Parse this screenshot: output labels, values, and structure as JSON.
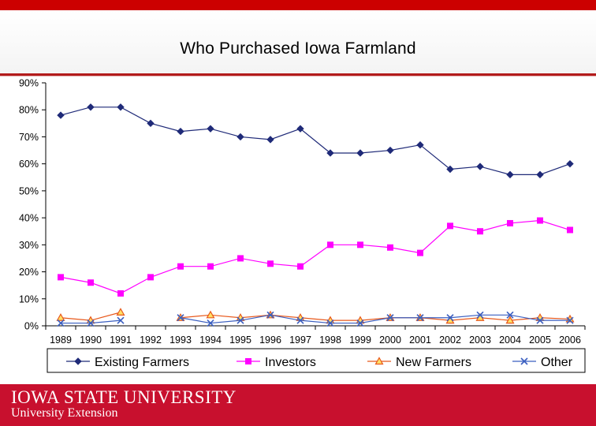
{
  "chart_data": {
    "type": "line",
    "title": "Who Purchased Iowa Farmland",
    "xlabel": "",
    "ylabel": "",
    "ylim": [
      0,
      90
    ],
    "y_ticks": [
      "0%",
      "10%",
      "20%",
      "30%",
      "40%",
      "50%",
      "60%",
      "70%",
      "80%",
      "90%"
    ],
    "y_tick_values": [
      0,
      10,
      20,
      30,
      40,
      50,
      60,
      70,
      80,
      90
    ],
    "grid": false,
    "legend_position": "bottom",
    "x": [
      "1989",
      "1990",
      "1991",
      "1992",
      "1993",
      "1994",
      "1995",
      "1996",
      "1997",
      "1998",
      "1999",
      "2000",
      "2001",
      "2002",
      "2003",
      "2004",
      "2005",
      "2006"
    ],
    "series": [
      {
        "name": "Existing Farmers",
        "color": "#1f2a78",
        "marker": "diamond",
        "values": [
          78,
          81,
          81,
          75,
          72,
          73,
          70,
          69,
          73,
          64,
          64,
          65,
          67,
          58,
          59,
          56,
          56,
          60
        ]
      },
      {
        "name": "Investors",
        "color": "#ff00ff",
        "marker": "square",
        "values": [
          18,
          16,
          12,
          18,
          22,
          22,
          25,
          23,
          22,
          30,
          30,
          29,
          27,
          37,
          35,
          38,
          39,
          35.5
        ]
      },
      {
        "name": "New Farmers",
        "color": "#e8591c",
        "marker": "triangle",
        "values": [
          3,
          2,
          5,
          null,
          3,
          4,
          3,
          4,
          3,
          2,
          2,
          3,
          3,
          2,
          3,
          2,
          3,
          2.5
        ]
      },
      {
        "name": "Other",
        "color": "#3b5fc0",
        "marker": "x",
        "values": [
          1,
          1,
          2,
          null,
          3,
          1,
          2,
          4,
          2,
          1,
          1,
          3,
          3,
          3,
          4,
          4,
          2,
          2
        ]
      }
    ]
  },
  "footer": {
    "university": "IOWA STATE UNIVERSITY",
    "extension": "University Extension"
  },
  "colors": {
    "brand_red": "#c8102e",
    "top_band": "#cc0000"
  }
}
